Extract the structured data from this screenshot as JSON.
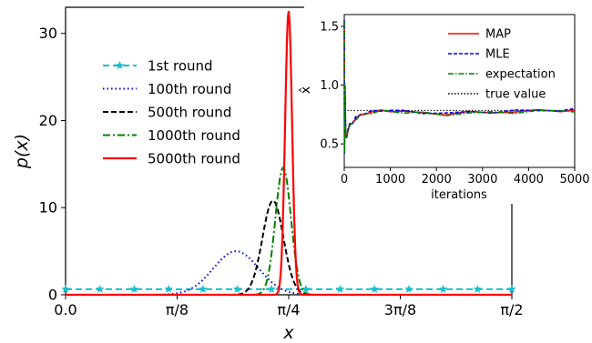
{
  "chart_data": [
    {
      "type": "line",
      "xlabel": "x",
      "ylabel": "p(x)",
      "xlim": [
        0,
        1.5708
      ],
      "ylim": [
        0,
        33
      ],
      "xticks": [
        {
          "value": 0,
          "label": "0.0"
        },
        {
          "value": 0.3927,
          "label": "π/8"
        },
        {
          "value": 0.7854,
          "label": "π/4"
        },
        {
          "value": 1.1781,
          "label": "3π/8"
        },
        {
          "value": 1.5708,
          "label": "π/2"
        }
      ],
      "yticks": [
        0,
        10,
        20,
        30
      ],
      "grid": false,
      "legend_position": "upper-left",
      "series": [
        {
          "name": "1st round",
          "color": "#17becf",
          "style": "dashed-star",
          "shape": "uniform",
          "level": 0.64
        },
        {
          "name": "100th round",
          "color": "#0000ff",
          "style": "dotted",
          "shape": "gaussian",
          "mean": 0.6,
          "peak": 5.0
        },
        {
          "name": "500th round",
          "color": "#000000",
          "style": "dashed",
          "shape": "gaussian",
          "mean": 0.73,
          "peak": 10.8
        },
        {
          "name": "1000th round",
          "color": "#008000",
          "style": "dashdot",
          "shape": "gaussian",
          "mean": 0.766,
          "peak": 14.6
        },
        {
          "name": "5000th round",
          "color": "#ff0000",
          "style": "solid",
          "shape": "gaussian",
          "mean": 0.785,
          "peak": 32.6
        }
      ]
    },
    {
      "type": "line",
      "inset": true,
      "xlabel": "iterations",
      "ylabel": "x̂",
      "xlim": [
        0,
        5000
      ],
      "ylim": [
        0.3,
        1.6
      ],
      "xticks": [
        0,
        1000,
        2000,
        3000,
        4000,
        5000
      ],
      "yticks": [
        0.5,
        1.0,
        1.5
      ],
      "legend_position": "upper-right",
      "true_value": 0.785,
      "series": [
        {
          "name": "MAP",
          "color": "#ff0000",
          "style": "solid"
        },
        {
          "name": "MLE",
          "color": "#0000ff",
          "style": "dashed"
        },
        {
          "name": "expectation",
          "color": "#008000",
          "style": "dashdot"
        },
        {
          "name": "true value",
          "color": "#000000",
          "style": "dotted"
        }
      ],
      "x": [
        0,
        5,
        15,
        30,
        50,
        80,
        120,
        180,
        250,
        350,
        450,
        600,
        800,
        1000,
        1300,
        1700,
        2200,
        2700,
        3200,
        3700,
        4200,
        4700,
        5000
      ],
      "estimate": [
        1.55,
        0.42,
        1.0,
        0.6,
        0.55,
        0.62,
        0.66,
        0.68,
        0.72,
        0.74,
        0.76,
        0.77,
        0.78,
        0.785,
        0.77,
        0.765,
        0.755,
        0.765,
        0.77,
        0.775,
        0.78,
        0.785,
        0.785
      ]
    }
  ]
}
